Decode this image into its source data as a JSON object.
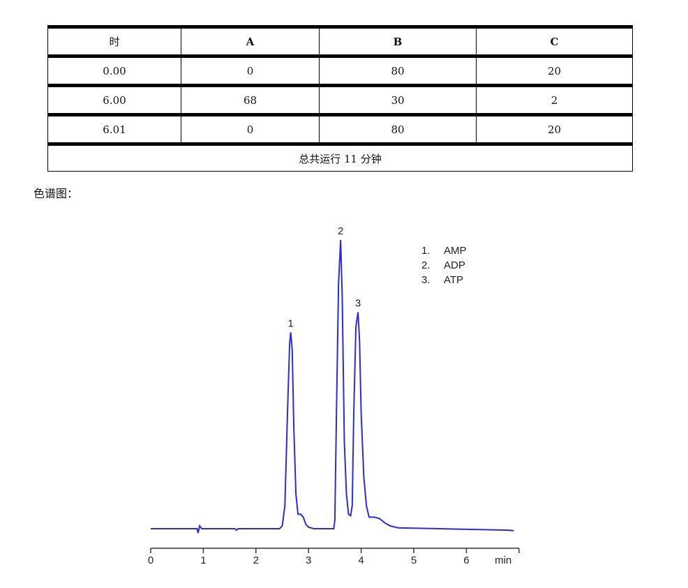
{
  "table": {
    "headers": [
      "时",
      "A",
      "B",
      "C"
    ],
    "rows": [
      [
        "0.00",
        "0",
        "80",
        "20"
      ],
      [
        "6.00",
        "68",
        "30",
        "2"
      ],
      [
        "6.01",
        "0",
        "80",
        "20"
      ]
    ],
    "total": "总共运行  11 分钟"
  },
  "caption": "色谱图：",
  "chart_data": {
    "type": "line",
    "xlabel": "min",
    "xlim": [
      0,
      7
    ],
    "xticks": [
      "0",
      "1",
      "2",
      "3",
      "4",
      "5",
      "6"
    ],
    "ylim": [
      -5,
      110
    ],
    "grid": false,
    "color": "#2a2ae0",
    "peak_labels": [
      {
        "label": "1",
        "x": 2.66,
        "y": 68
      },
      {
        "label": "2",
        "x": 3.61,
        "y": 100
      },
      {
        "label": "3",
        "x": 3.94,
        "y": 75
      }
    ],
    "legend": [
      "1.  AMP",
      "2.  ADP",
      "3.  ATP"
    ],
    "legend_position": "top-right",
    "series": [
      {
        "x": [
          0,
          0.88,
          0.9,
          0.93,
          0.97,
          1.6,
          1.63,
          1.66,
          2.45,
          2.5,
          2.55,
          2.6,
          2.64,
          2.66,
          2.69,
          2.72,
          2.76,
          2.8,
          2.85,
          2.9,
          2.95,
          3.0,
          3.1,
          3.48,
          3.5,
          3.53,
          3.57,
          3.61,
          3.64,
          3.68,
          3.72,
          3.76,
          3.8,
          3.83,
          3.86,
          3.9,
          3.94,
          3.97,
          4.0,
          4.05,
          4.1,
          4.15,
          4.25,
          4.35,
          4.45,
          4.55,
          4.7,
          5.5,
          6.8,
          6.9
        ],
        "y": [
          0,
          0,
          -1.5,
          1,
          0,
          0,
          -0.5,
          0,
          0,
          1,
          8,
          40,
          64,
          68,
          62,
          35,
          12,
          5,
          5,
          4,
          1.5,
          0.5,
          0,
          0,
          3,
          40,
          85,
          100,
          80,
          30,
          12,
          5,
          4.5,
          8,
          40,
          70,
          75,
          65,
          40,
          18,
          8,
          4,
          4,
          3.5,
          2,
          1,
          0.3,
          0,
          -0.5,
          -0.7
        ]
      }
    ]
  }
}
